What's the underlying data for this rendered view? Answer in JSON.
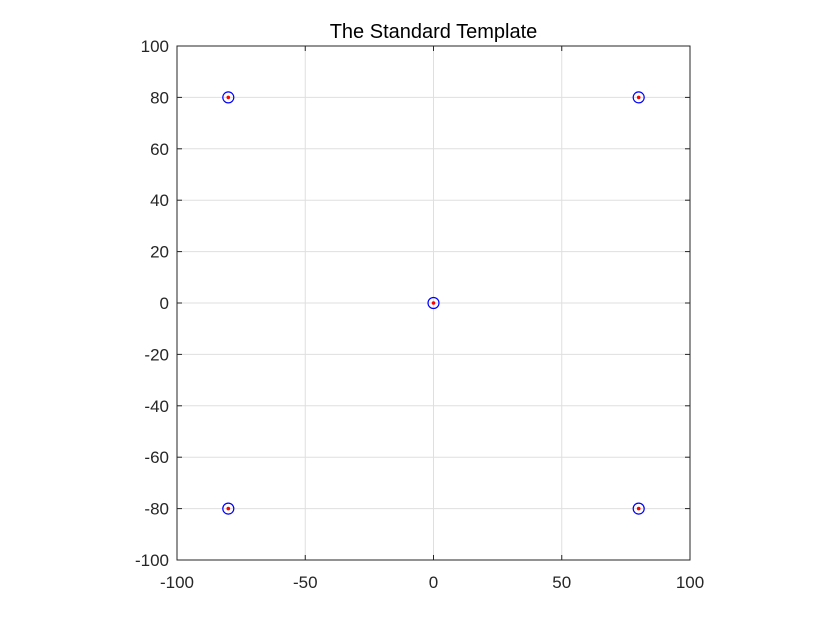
{
  "chart_data": {
    "type": "scatter",
    "title": "The Standard Template",
    "xlabel": "",
    "ylabel": "",
    "xlim": [
      -100,
      100
    ],
    "ylim": [
      -100,
      100
    ],
    "x_ticks": [
      -100,
      -50,
      0,
      50,
      100
    ],
    "y_ticks": [
      -100,
      -80,
      -60,
      -40,
      -20,
      0,
      20,
      40,
      60,
      80,
      100
    ],
    "grid": true,
    "box": true,
    "series": [
      {
        "marker": "circle",
        "color": "#0000ff",
        "filled": false,
        "points": [
          {
            "x": -80,
            "y": 80
          },
          {
            "x": 80,
            "y": 80
          },
          {
            "x": 0,
            "y": 0
          },
          {
            "x": -80,
            "y": -80
          },
          {
            "x": 80,
            "y": -80
          }
        ]
      },
      {
        "marker": "dot",
        "color": "#ff0000",
        "filled": true,
        "points": [
          {
            "x": -80,
            "y": 80
          },
          {
            "x": 80,
            "y": 80
          },
          {
            "x": 0,
            "y": 0
          },
          {
            "x": -80,
            "y": -80
          },
          {
            "x": 80,
            "y": -80
          }
        ]
      }
    ],
    "colors": {
      "grid": "#dfdfdf",
      "axis": "#262626",
      "background": "#ffffff"
    }
  }
}
